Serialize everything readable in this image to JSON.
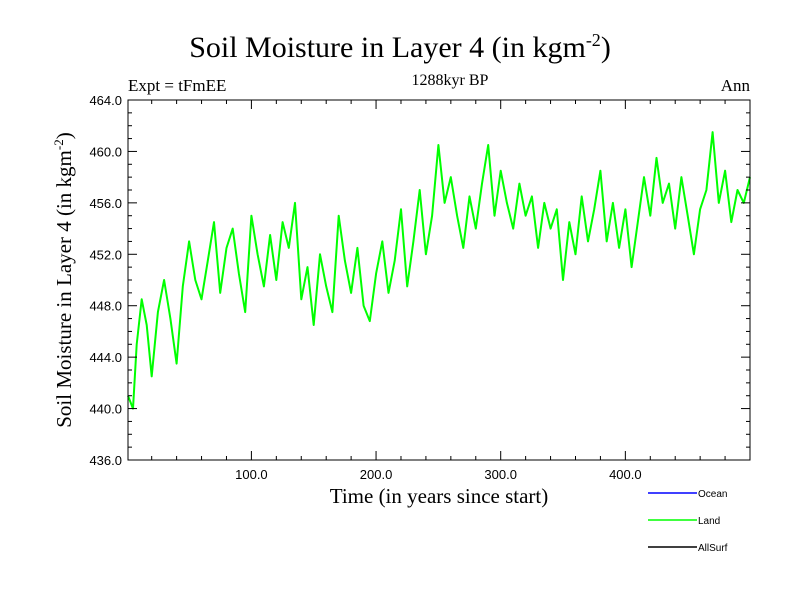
{
  "chart_data": {
    "type": "line",
    "title_main": "Soil Moisture in Layer 4 (in kgm",
    "title_exp": "-2",
    "title_close": ")",
    "subtitle_left": "Expt = tFmEE",
    "subtitle_center": "1288kyr BP",
    "subtitle_right": "Ann",
    "xlabel": "Time (in years since start)",
    "ylabel_main": "Soil Moisture in Layer 4 (in kgm",
    "ylabel_exp": "-2",
    "ylabel_close": ")",
    "xlim": [
      1,
      500
    ],
    "ylim": [
      436.0,
      464.0
    ],
    "xticks": [
      100,
      200,
      300,
      400
    ],
    "xtick_labels": [
      "100.0",
      "200.0",
      "300.0",
      "400.0"
    ],
    "yticks": [
      436,
      440,
      444,
      448,
      452,
      456,
      460,
      464
    ],
    "ytick_labels": [
      "436.0",
      "440.0",
      "444.0",
      "448.0",
      "452.0",
      "456.0",
      "460.0",
      "464.0"
    ],
    "legend": [
      {
        "name": "Ocean",
        "color": "#0000ff"
      },
      {
        "name": "Land",
        "color": "#00ff00"
      },
      {
        "name": "AllSurf",
        "color": "#000000"
      }
    ],
    "series": [
      {
        "name": "Land",
        "color": "#00ff00",
        "x": [
          1,
          5,
          8,
          12,
          16,
          20,
          25,
          30,
          35,
          40,
          45,
          50,
          55,
          60,
          65,
          70,
          75,
          80,
          85,
          90,
          95,
          100,
          105,
          110,
          115,
          120,
          125,
          130,
          135,
          140,
          145,
          150,
          155,
          160,
          165,
          170,
          175,
          180,
          185,
          190,
          195,
          200,
          205,
          210,
          215,
          220,
          225,
          230,
          235,
          240,
          245,
          250,
          255,
          260,
          265,
          270,
          275,
          280,
          285,
          290,
          295,
          300,
          305,
          310,
          315,
          320,
          325,
          330,
          335,
          340,
          345,
          350,
          355,
          360,
          365,
          370,
          375,
          380,
          385,
          390,
          395,
          400,
          405,
          410,
          415,
          420,
          425,
          430,
          435,
          440,
          445,
          450,
          455,
          460,
          465,
          470,
          475,
          480,
          485,
          490,
          495,
          500
        ],
        "values": [
          441.0,
          440.0,
          445.0,
          448.5,
          446.5,
          442.5,
          447.5,
          450.0,
          447.0,
          443.5,
          449.5,
          453.0,
          450.0,
          448.5,
          451.5,
          454.5,
          449.0,
          452.5,
          454.0,
          450.5,
          447.5,
          455.0,
          452.0,
          449.5,
          453.5,
          450.0,
          454.5,
          452.5,
          456.0,
          448.5,
          451.0,
          446.5,
          452.0,
          449.5,
          447.5,
          455.0,
          451.5,
          449.0,
          452.5,
          448.0,
          446.8,
          450.5,
          453.0,
          449.0,
          451.5,
          455.5,
          449.5,
          453.0,
          457.0,
          452.0,
          455.0,
          460.5,
          456.0,
          458.0,
          455.0,
          452.5,
          456.5,
          454.0,
          457.5,
          460.5,
          455.0,
          458.5,
          456.0,
          454.0,
          457.5,
          455.0,
          456.5,
          452.5,
          456.0,
          454.0,
          455.5,
          450.0,
          454.5,
          452.0,
          456.5,
          453.0,
          455.5,
          458.5,
          453.0,
          456.0,
          452.5,
          455.5,
          451.0,
          454.5,
          458.0,
          455.0,
          459.5,
          456.0,
          457.5,
          454.0,
          458.0,
          455.0,
          452.0,
          455.5,
          457.0,
          461.5,
          456.0,
          458.5,
          454.5,
          457.0,
          456.0,
          458.0
        ]
      }
    ]
  }
}
